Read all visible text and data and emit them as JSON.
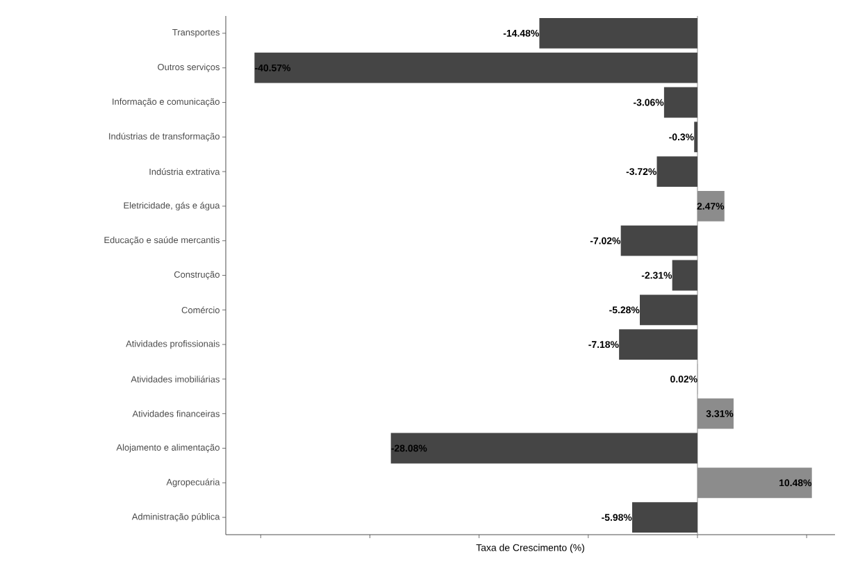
{
  "chart_data": {
    "type": "bar",
    "orientation": "horizontal",
    "xlabel": "Taxa de Crescimento (%)",
    "categories": [
      "Transportes",
      "Outros serviços",
      "Informação e comunicação",
      "Indústrias de transformação",
      "Indústria extrativa",
      "Eletricidade, gás e água",
      "Educação e saúde mercantis",
      "Construção",
      "Comércio",
      "Atividades profissionais",
      "Atividades imobiliárias",
      "Atividades financeiras",
      "Alojamento e alimentação",
      "Agropecuária",
      "Administração pública"
    ],
    "values": [
      -14.48,
      -40.57,
      -3.06,
      -0.3,
      -3.72,
      2.47,
      -7.02,
      -2.31,
      -5.28,
      -7.18,
      0.02,
      3.31,
      -28.08,
      10.48,
      -5.98
    ],
    "value_labels": [
      "-14.48%",
      "-40.57%",
      "-3.06%",
      "-0.3%",
      "-3.72%",
      "2.47%",
      "-7.02%",
      "-2.31%",
      "-5.28%",
      "-7.18%",
      "0.02%",
      "3.31%",
      "-28.08%",
      "10.48%",
      "-5.98%"
    ],
    "colors": [
      "#454545",
      "#454545",
      "#454545",
      "#454545",
      "#454545",
      "#8c8c8c",
      "#454545",
      "#454545",
      "#454545",
      "#454545",
      "#8c8c8c",
      "#8c8c8c",
      "#454545",
      "#8c8c8c",
      "#454545"
    ],
    "xlim": [
      -43.2,
      12.6
    ],
    "xticks": [
      {
        "value": -40,
        "label": null
      },
      {
        "value": -30,
        "label": null
      },
      {
        "value": -20,
        "label": null
      },
      {
        "value": -10,
        "label": null
      },
      {
        "value": 0,
        "label": null
      },
      {
        "value": 10,
        "label": null
      }
    ],
    "tick_labels": "y",
    "grid": false,
    "ref_lines": [
      {
        "axis": "x",
        "value": 0,
        "color": "#8c8c8c"
      }
    ]
  }
}
